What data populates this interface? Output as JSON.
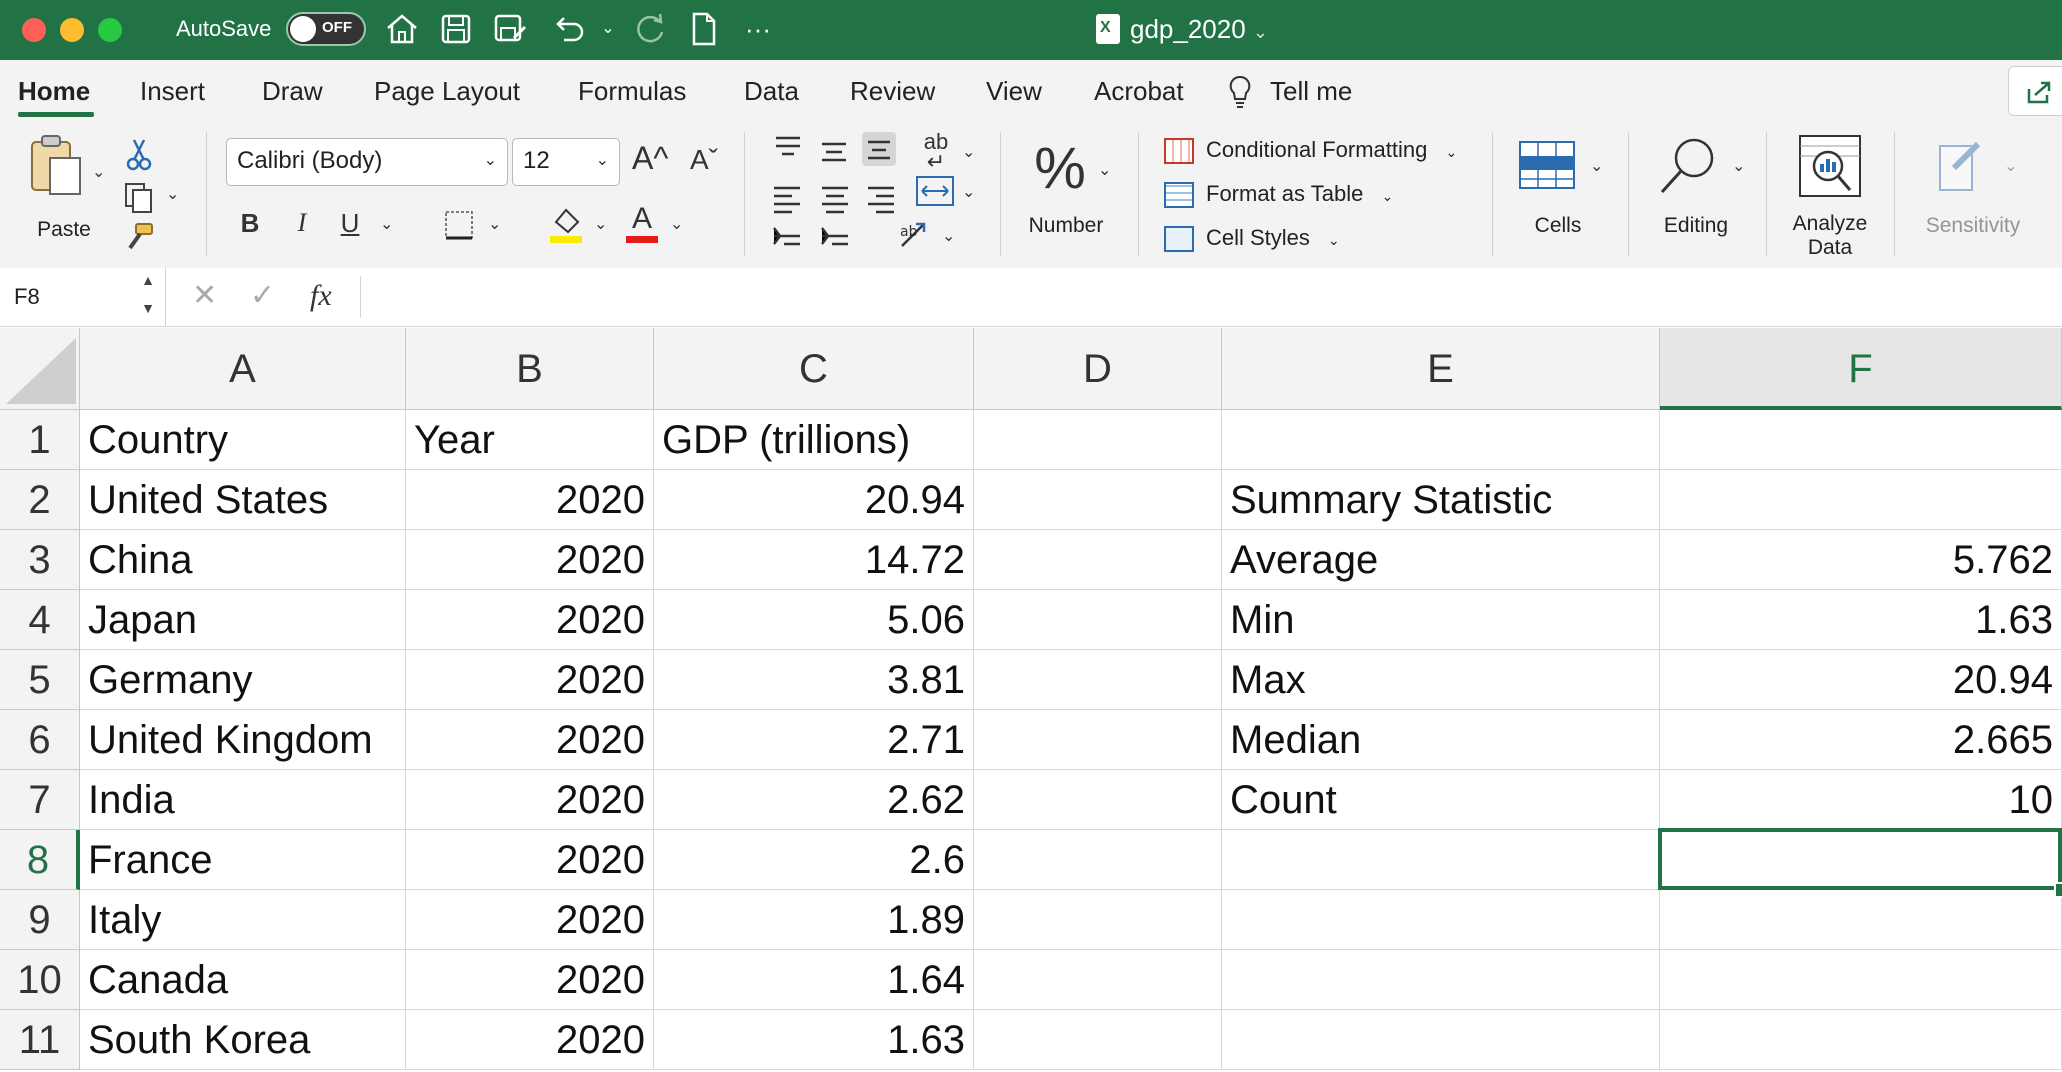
{
  "titlebar": {
    "autosave_label": "AutoSave",
    "autosave_state": "OFF",
    "document_name": "gdp_2020",
    "more": "···",
    "icons": [
      "home-icon",
      "save-icon",
      "save-as-icon",
      "undo-icon",
      "redo-icon",
      "new-document-icon",
      "more-icon"
    ]
  },
  "tabs": [
    "Home",
    "Insert",
    "Draw",
    "Page Layout",
    "Formulas",
    "Data",
    "Review",
    "View",
    "Acrobat",
    "Tell me"
  ],
  "active_tab": "Home",
  "ribbon": {
    "paste_label": "Paste",
    "font_name": "Calibri (Body)",
    "font_size": "12",
    "grow_font": "A^",
    "shrink_font": "Aˇ",
    "bold": "B",
    "italic": "I",
    "underline": "U",
    "font_color_glyph": "A",
    "number_label": "Number",
    "conditional_formatting": "Conditional Formatting",
    "format_as_table": "Format as Table",
    "cell_styles": "Cell Styles",
    "cells_label": "Cells",
    "editing_label": "Editing",
    "analyze_label_1": "Analyze",
    "analyze_label_2": "Data",
    "sensitivity_label": "Sensitivity"
  },
  "formula_bar": {
    "name_box": "F8",
    "cancel": "✕",
    "enter": "✓",
    "fx": "fx",
    "content": ""
  },
  "sheet": {
    "columns": [
      "A",
      "B",
      "C",
      "D",
      "E",
      "F"
    ],
    "selected_column": "F",
    "selected_row": "8",
    "rows": [
      {
        "n": "1",
        "A": "Country",
        "B": "Year",
        "C": "GDP (trillions)",
        "D": "",
        "E": "",
        "F": ""
      },
      {
        "n": "2",
        "A": "United States",
        "B": "2020",
        "C": "20.94",
        "D": "",
        "E": "Summary Statistic",
        "F": ""
      },
      {
        "n": "3",
        "A": "China",
        "B": "2020",
        "C": "14.72",
        "D": "",
        "E": "Average",
        "F": "5.762"
      },
      {
        "n": "4",
        "A": "Japan",
        "B": "2020",
        "C": "5.06",
        "D": "",
        "E": "Min",
        "F": "1.63"
      },
      {
        "n": "5",
        "A": "Germany",
        "B": "2020",
        "C": "3.81",
        "D": "",
        "E": "Max",
        "F": "20.94"
      },
      {
        "n": "6",
        "A": "United Kingdom",
        "B": "2020",
        "C": "2.71",
        "D": "",
        "E": "Median",
        "F": "2.665"
      },
      {
        "n": "7",
        "A": "India",
        "B": "2020",
        "C": "2.62",
        "D": "",
        "E": "Count",
        "F": "10"
      },
      {
        "n": "8",
        "A": "France",
        "B": "2020",
        "C": "2.6",
        "D": "",
        "E": "",
        "F": ""
      },
      {
        "n": "9",
        "A": "Italy",
        "B": "2020",
        "C": "1.89",
        "D": "",
        "E": "",
        "F": ""
      },
      {
        "n": "10",
        "A": "Canada",
        "B": "2020",
        "C": "1.64",
        "D": "",
        "E": "",
        "F": ""
      },
      {
        "n": "11",
        "A": "South Korea",
        "B": "2020",
        "C": "1.63",
        "D": "",
        "E": "",
        "F": ""
      }
    ]
  },
  "colors": {
    "brand": "#217346",
    "ribbon_bg": "#f3f3f3",
    "gridline": "#d8d8d8"
  }
}
